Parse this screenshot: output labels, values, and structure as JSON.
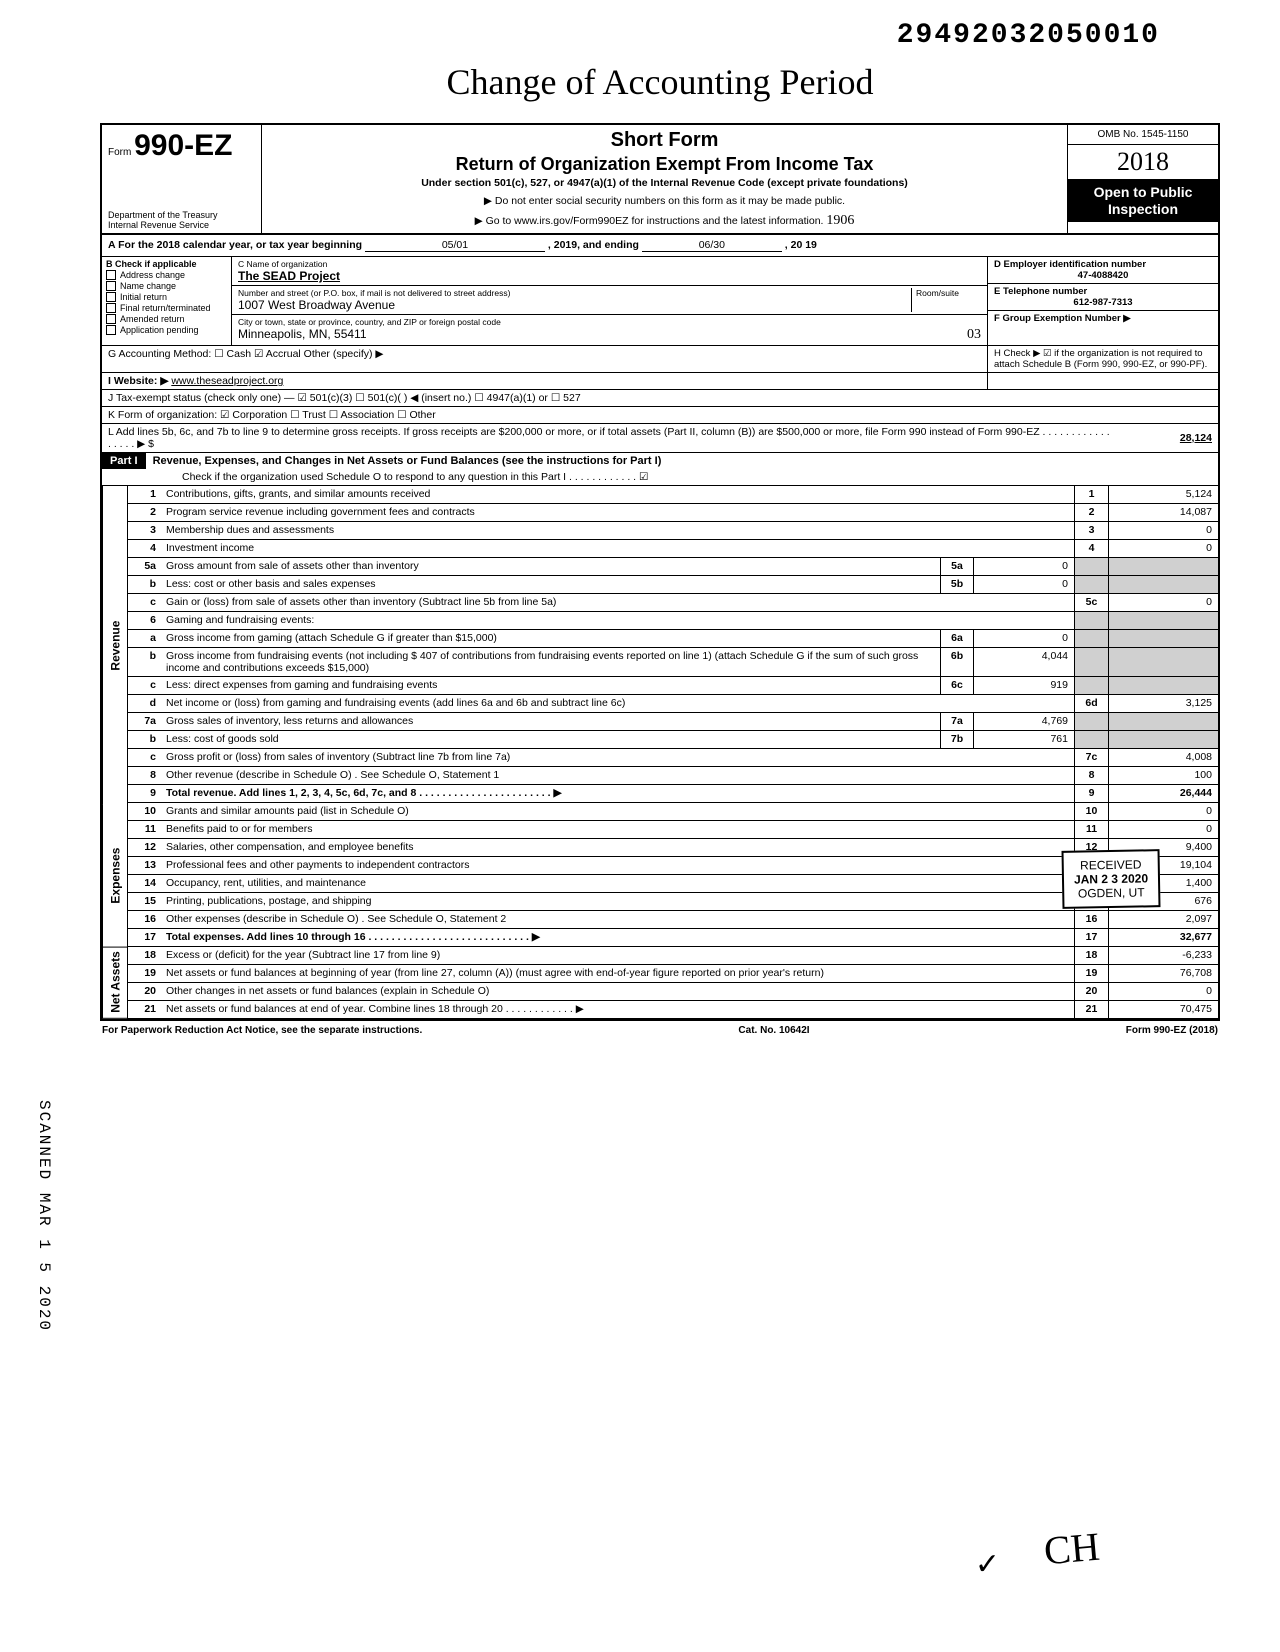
{
  "topNumber": "29492032050010",
  "handwrittenTitle": "Change of Accounting Period",
  "header": {
    "formPrefix": "Form",
    "formNum": "990-EZ",
    "dept": "Department of the Treasury\nInternal Revenue Service",
    "shortForm": "Short Form",
    "mainTitle": "Return of Organization Exempt From Income Tax",
    "subTitle": "Under section 501(c), 527, or 4947(a)(1) of the Internal Revenue Code (except private foundations)",
    "note1": "▶ Do not enter social security numbers on this form as it may be made public.",
    "note2": "▶ Go to www.irs.gov/Form990EZ for instructions and the latest information.",
    "omb": "OMB No. 1545-1150",
    "year": "2018",
    "open": "Open to Public Inspection",
    "handNum": "1906"
  },
  "period": {
    "label": "A For the 2018 calendar year, or tax year beginning",
    "begin": "05/01",
    "mid": ", 2019, and ending",
    "end": "06/30",
    "endYear": ", 20 19"
  },
  "sectionB": {
    "label": "B Check if applicable",
    "items": [
      "Address change",
      "Name change",
      "Initial return",
      "Final return/terminated",
      "Amended return",
      "Application pending"
    ]
  },
  "sectionC": {
    "nameLabel": "C Name of organization",
    "name": "The SEAD Project",
    "addrLabel": "Number and street (or P.O. box, if mail is not delivered to street address)",
    "roomLabel": "Room/suite",
    "addr": "1007 West Broadway Avenue",
    "cityLabel": "City or town, state or province, country, and ZIP or foreign postal code",
    "city": "Minneapolis, MN, 55411",
    "handCity": "03"
  },
  "sectionD": {
    "label": "D Employer identification number",
    "value": "47-4088420"
  },
  "sectionE": {
    "label": "E Telephone number",
    "value": "612-987-7313"
  },
  "sectionF": {
    "label": "F Group Exemption Number ▶"
  },
  "lineG": "G Accounting Method: ☐ Cash ☑ Accrual Other (specify) ▶",
  "lineH": "H Check ▶ ☑ if the organization is not required to attach Schedule B (Form 990, 990-EZ, or 990-PF).",
  "lineI": {
    "label": "I Website: ▶",
    "value": "www.theseadproject.org"
  },
  "lineJ": "J Tax-exempt status (check only one) — ☑ 501(c)(3) ☐ 501(c)( ) ◀ (insert no.) ☐ 4947(a)(1) or ☐ 527",
  "lineK": "K Form of organization: ☑ Corporation ☐ Trust ☐ Association ☐ Other",
  "lineL": {
    "text": "L Add lines 5b, 6c, and 7b to line 9 to determine gross receipts. If gross receipts are $200,000 or more, or if total assets (Part II, column (B)) are $500,000 or more, file Form 990 instead of Form 990-EZ . . . . . . . . . . . . . . . . . ▶ $",
    "value": "28,124"
  },
  "partI": {
    "header": "Part I",
    "title": "Revenue, Expenses, and Changes in Net Assets or Fund Balances (see the instructions for Part I)",
    "checkNote": "Check if the organization used Schedule O to respond to any question in this Part I . . . . . . . . . . . . ☑"
  },
  "sideLabels": {
    "revenue": "Revenue",
    "expenses": "Expenses",
    "netassets": "Net Assets"
  },
  "lines": {
    "1": {
      "n": "1",
      "d": "Contributions, gifts, grants, and similar amounts received",
      "box": "1",
      "amt": "5,124"
    },
    "2": {
      "n": "2",
      "d": "Program service revenue including government fees and contracts",
      "box": "2",
      "amt": "14,087"
    },
    "3": {
      "n": "3",
      "d": "Membership dues and assessments",
      "box": "3",
      "amt": "0"
    },
    "4": {
      "n": "4",
      "d": "Investment income",
      "box": "4",
      "amt": "0"
    },
    "5a": {
      "n": "5a",
      "d": "Gross amount from sale of assets other than inventory",
      "sb": "5a",
      "sa": "0"
    },
    "5b": {
      "n": "b",
      "d": "Less: cost or other basis and sales expenses",
      "sb": "5b",
      "sa": "0"
    },
    "5c": {
      "n": "c",
      "d": "Gain or (loss) from sale of assets other than inventory (Subtract line 5b from line 5a)",
      "box": "5c",
      "amt": "0"
    },
    "6": {
      "n": "6",
      "d": "Gaming and fundraising events:"
    },
    "6a": {
      "n": "a",
      "d": "Gross income from gaming (attach Schedule G if greater than $15,000)",
      "sb": "6a",
      "sa": "0"
    },
    "6b": {
      "n": "b",
      "d": "Gross income from fundraising events (not including $ 407 of contributions from fundraising events reported on line 1) (attach Schedule G if the sum of such gross income and contributions exceeds $15,000)",
      "sb": "6b",
      "sa": "4,044"
    },
    "6c": {
      "n": "c",
      "d": "Less: direct expenses from gaming and fundraising events",
      "sb": "6c",
      "sa": "919"
    },
    "6d": {
      "n": "d",
      "d": "Net income or (loss) from gaming and fundraising events (add lines 6a and 6b and subtract line 6c)",
      "box": "6d",
      "amt": "3,125"
    },
    "7a": {
      "n": "7a",
      "d": "Gross sales of inventory, less returns and allowances",
      "sb": "7a",
      "sa": "4,769"
    },
    "7b": {
      "n": "b",
      "d": "Less: cost of goods sold",
      "sb": "7b",
      "sa": "761"
    },
    "7c": {
      "n": "c",
      "d": "Gross profit or (loss) from sales of inventory (Subtract line 7b from line 7a)",
      "box": "7c",
      "amt": "4,008"
    },
    "8": {
      "n": "8",
      "d": "Other revenue (describe in Schedule O) . See Schedule O, Statement 1",
      "box": "8",
      "amt": "100"
    },
    "9": {
      "n": "9",
      "d": "Total revenue. Add lines 1, 2, 3, 4, 5c, 6d, 7c, and 8 . . . . . . . . . . . . . . . . . . . . . . . ▶",
      "box": "9",
      "amt": "26,444",
      "bold": true
    },
    "10": {
      "n": "10",
      "d": "Grants and similar amounts paid (list in Schedule O)",
      "box": "10",
      "amt": "0"
    },
    "11": {
      "n": "11",
      "d": "Benefits paid to or for members",
      "box": "11",
      "amt": "0"
    },
    "12": {
      "n": "12",
      "d": "Salaries, other compensation, and employee benefits",
      "box": "12",
      "amt": "9,400"
    },
    "13": {
      "n": "13",
      "d": "Professional fees and other payments to independent contractors",
      "box": "13",
      "amt": "19,104"
    },
    "14": {
      "n": "14",
      "d": "Occupancy, rent, utilities, and maintenance",
      "box": "14",
      "amt": "1,400"
    },
    "15": {
      "n": "15",
      "d": "Printing, publications, postage, and shipping",
      "box": "15",
      "amt": "676"
    },
    "16": {
      "n": "16",
      "d": "Other expenses (describe in Schedule O) . See Schedule O, Statement 2",
      "box": "16",
      "amt": "2,097"
    },
    "17": {
      "n": "17",
      "d": "Total expenses. Add lines 10 through 16 . . . . . . . . . . . . . . . . . . . . . . . . . . . . ▶",
      "box": "17",
      "amt": "32,677",
      "bold": true
    },
    "18": {
      "n": "18",
      "d": "Excess or (deficit) for the year (Subtract line 17 from line 9)",
      "box": "18",
      "amt": "-6,233"
    },
    "19": {
      "n": "19",
      "d": "Net assets or fund balances at beginning of year (from line 27, column (A)) (must agree with end-of-year figure reported on prior year's return)",
      "box": "19",
      "amt": "76,708"
    },
    "20": {
      "n": "20",
      "d": "Other changes in net assets or fund balances (explain in Schedule O)",
      "box": "20",
      "amt": "0"
    },
    "21": {
      "n": "21",
      "d": "Net assets or fund balances at end of year. Combine lines 18 through 20 . . . . . . . . . . . . ▶",
      "box": "21",
      "amt": "70,475"
    }
  },
  "footer": {
    "left": "For Paperwork Reduction Act Notice, see the separate instructions.",
    "mid": "Cat. No. 10642I",
    "right": "Form 990-EZ (2018)"
  },
  "stamp": {
    "l1": "RECEIVED",
    "l2": "JAN 2 3 2020",
    "l3": "OGDEN, UT"
  },
  "scanned": "SCANNED MAR 1 5 2020",
  "signature": "CH",
  "checkMark": "✓"
}
